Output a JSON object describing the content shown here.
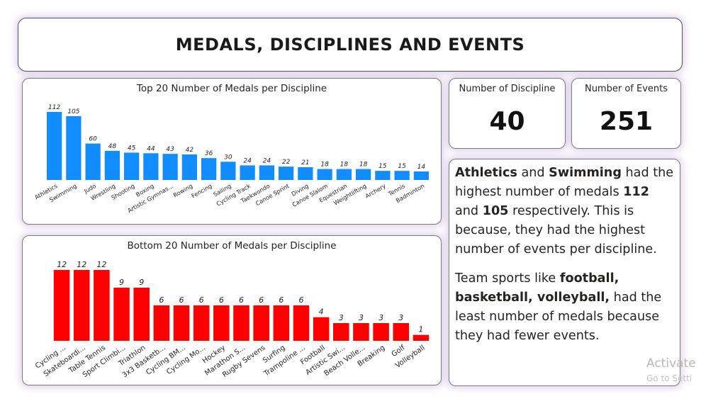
{
  "header": {
    "title": "MEDALS, DISCIPLINES AND EVENTS"
  },
  "kpis": {
    "disciplines": {
      "label": "Number of Discipline",
      "value": "40"
    },
    "events": {
      "label": "Number of Events",
      "value": "251"
    }
  },
  "note": {
    "p1": [
      {
        "t": "Athletics",
        "b": true
      },
      {
        "t": " and ",
        "b": false
      },
      {
        "t": "Swimming",
        "b": true
      },
      {
        "t": " had the highest number of medals ",
        "b": false
      },
      {
        "t": "112",
        "b": true
      },
      {
        "t": " and ",
        "b": false
      },
      {
        "t": "105",
        "b": true
      },
      {
        "t": " respectively. This is because, they had the highest number of events per discipline.",
        "b": false
      }
    ],
    "p2": [
      {
        "t": "Team sports like ",
        "b": false
      },
      {
        "t": "football, basketball, volleyball,",
        "b": true
      },
      {
        "t": " had the least number of medals because they had fewer events",
        "b": false
      },
      {
        "t": ".",
        "b": false
      }
    ]
  },
  "watermark": {
    "line1": "Activate",
    "line2": "Go to Setti"
  },
  "chart_data": [
    {
      "type": "bar",
      "title": "Top 20 Number of Medals per Discipline",
      "color": "#118DFF",
      "categories": [
        "Athletics",
        "Swimming",
        "Judo",
        "Wrestling",
        "Shooting",
        "Boxing",
        "Artistic Gymnas...",
        "Rowing",
        "Fencing",
        "Sailing",
        "Cycling Track",
        "Taekwondo",
        "Canoe Sprint",
        "Diving",
        "Canoe Slalom",
        "Equestrian",
        "Weightlifting",
        "Archery",
        "Tennis",
        "Badminton"
      ],
      "values": [
        112,
        105,
        60,
        48,
        45,
        44,
        43,
        42,
        36,
        30,
        24,
        24,
        22,
        21,
        18,
        18,
        18,
        15,
        15,
        14
      ],
      "ylim": [
        0,
        112
      ]
    },
    {
      "type": "bar",
      "title": "Bottom 20 Number of Medals per Discipline",
      "color": "#FF0000",
      "categories": [
        "Cycling ...",
        "Skateboardi...",
        "Table Tennis",
        "Sport Climbi...",
        "Triathlon",
        "3x3 Basketb...",
        "Cycling BM...",
        "Cycling Mo...",
        "Hockey",
        "Marathon S...",
        "Rugby Sevens",
        "Surfing",
        "Trampoline ...",
        "Football",
        "Artistic Swi...",
        "Beach Volle...",
        "Breaking",
        "Golf",
        "Volleyball"
      ],
      "values": [
        12,
        12,
        12,
        9,
        9,
        6,
        6,
        6,
        6,
        6,
        6,
        6,
        6,
        4,
        3,
        3,
        3,
        3,
        1
      ],
      "ylim": [
        0,
        12
      ]
    }
  ]
}
